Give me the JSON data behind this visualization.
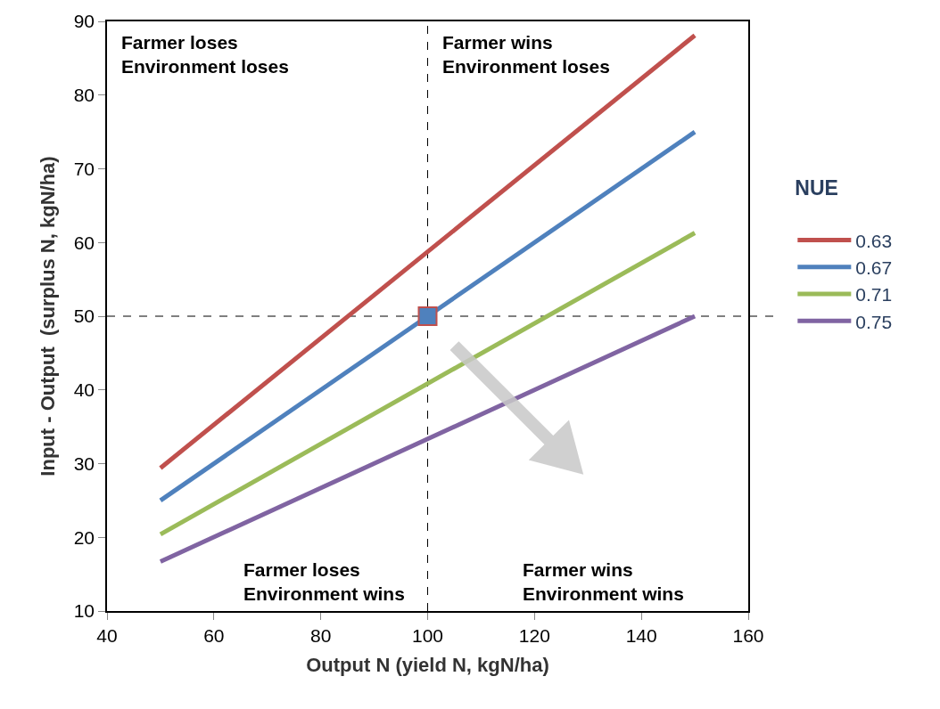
{
  "chart_data": {
    "type": "line",
    "xlabel": "Output N (yield N, kgN/ha)",
    "ylabel": "Input - Output  (surplus N, kgN/ha)",
    "legend_title": "NUE",
    "x": [
      50,
      150
    ],
    "series": [
      {
        "name": "0.63",
        "color": "#c0504d",
        "values": [
          29.4,
          88.1
        ]
      },
      {
        "name": "0.67",
        "color": "#4f81bd",
        "values": [
          25,
          75
        ]
      },
      {
        "name": "0.71",
        "color": "#9bbb59",
        "values": [
          20.4,
          61.3
        ]
      },
      {
        "name": "0.75",
        "color": "#8064a2",
        "values": [
          16.7,
          50
        ]
      },
      {
        "type": "scatter",
        "x": [
          100
        ],
        "color": "#4f81bd",
        "marker": "square",
        "values": [
          50
        ]
      }
    ],
    "xlim": [
      40,
      160
    ],
    "xticks": [
      40,
      60,
      80,
      100,
      120,
      140,
      160
    ],
    "ylim": [
      10,
      90
    ],
    "yticks": [
      10,
      20,
      30,
      40,
      50,
      60,
      70,
      80,
      90
    ],
    "ref_lines": [
      {
        "axis": "x",
        "value": 100,
        "color": "#000000",
        "line_style": "dashed"
      },
      {
        "axis": "y",
        "value": 50,
        "color": "#000000",
        "line_style": "dashed"
      }
    ],
    "annotations": [
      "Farmer loses\nEnvironment loses",
      "Farmer wins\nEnvironment loses",
      "Farmer loses\nEnvironment wins",
      "Farmer wins\nEnvironment wins"
    ],
    "grid": false,
    "legend": "right",
    "marker": "none",
    "line_style": "solid"
  }
}
